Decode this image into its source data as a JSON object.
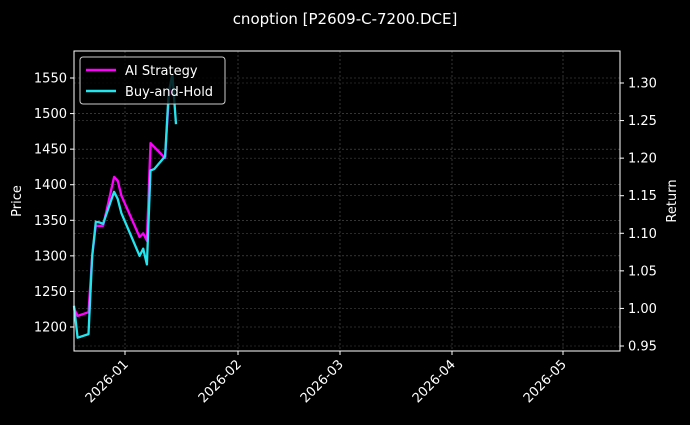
{
  "chart_data": {
    "type": "line",
    "title": "cnoption [P2609-C-7200.DCE]",
    "xlabel": "",
    "ylabel": "Price",
    "y2label": "Return",
    "x_ticks": [
      "2026-01",
      "2026-02",
      "2026-03",
      "2026-04",
      "2026-05"
    ],
    "y_ticks": [
      1200,
      1250,
      1300,
      1350,
      1400,
      1450,
      1500,
      1550
    ],
    "y2_ticks": [
      "0.95",
      "1.00",
      "1.05",
      "1.10",
      "1.15",
      "1.20",
      "1.25",
      "1.30"
    ],
    "ylim": [
      1165,
      1585
    ],
    "y2lim": [
      0.94,
      1.335
    ],
    "grid": true,
    "legend_position": "upper left",
    "series": [
      {
        "name": "AI Strategy",
        "color": "#ff00ff",
        "axis": "right",
        "x": [
          "2025-12-18",
          "2025-12-19",
          "2025-12-22",
          "2025-12-23",
          "2025-12-24",
          "2025-12-25",
          "2025-12-26",
          "2025-12-29",
          "2025-12-30",
          "2025-12-31",
          "2026-01-05",
          "2026-01-06",
          "2026-01-07",
          "2026-01-08",
          "2026-01-09",
          "2026-01-12",
          "2026-01-13",
          "2026-01-14"
        ],
        "values": [
          1.0,
          0.99,
          0.995,
          1.07,
          1.11,
          1.11,
          1.11,
          1.175,
          1.17,
          1.15,
          1.095,
          1.1,
          1.09,
          1.22,
          1.215,
          1.2,
          1.28,
          1.31
        ]
      },
      {
        "name": "Buy-and-Hold",
        "color": "#22e5ee",
        "axis": "left",
        "x": [
          "2025-12-18",
          "2025-12-19",
          "2025-12-22",
          "2025-12-23",
          "2025-12-24",
          "2025-12-25",
          "2025-12-26",
          "2025-12-29",
          "2025-12-30",
          "2025-12-31",
          "2026-01-05",
          "2026-01-06",
          "2026-01-07",
          "2026-01-08",
          "2026-01-09",
          "2026-01-12",
          "2026-01-13",
          "2026-01-14",
          "2026-01-15"
        ],
        "values": [
          1230,
          1185,
          1190,
          1300,
          1348,
          1347,
          1345,
          1390,
          1380,
          1360,
          1300,
          1310,
          1288,
          1420,
          1422,
          1440,
          1530,
          1555,
          1485
        ]
      }
    ]
  }
}
